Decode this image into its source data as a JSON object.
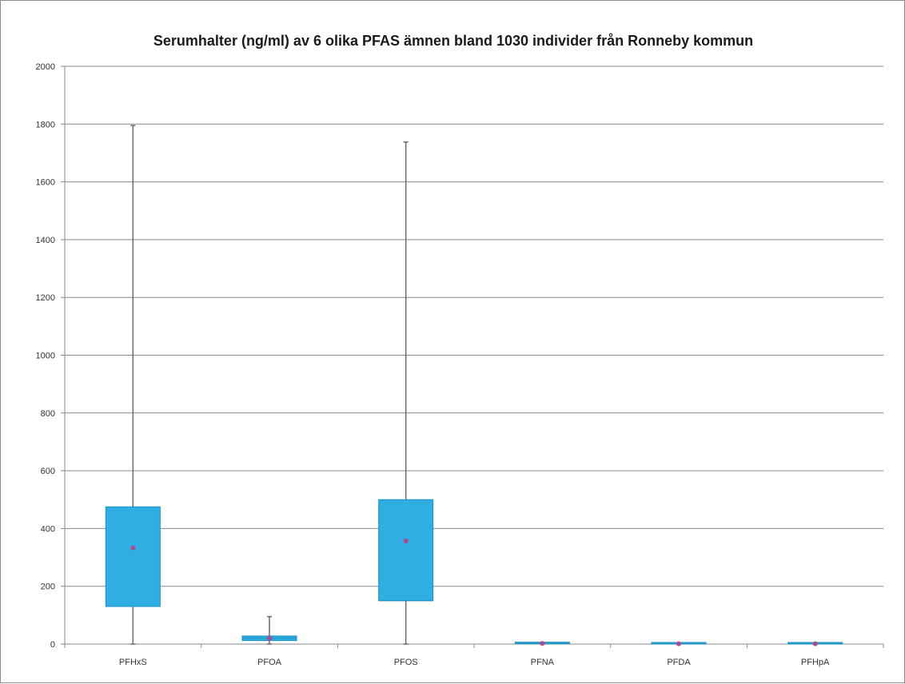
{
  "chart_data": {
    "type": "box",
    "title": "Serumhalter (ng/ml) av 6 olika PFAS ämnen bland 1030 individer från Ronneby kommun",
    "xlabel": "",
    "ylabel": "",
    "ylim": [
      0,
      2000
    ],
    "yticks": [
      0,
      200,
      400,
      600,
      800,
      1000,
      1200,
      1400,
      1600,
      1800,
      2000
    ],
    "grid": true,
    "categories": [
      "PFHxS",
      "PFOA",
      "PFOS",
      "PFNA",
      "PFDA",
      "PFHpA"
    ],
    "boxes": [
      {
        "min": 0,
        "q1": 130,
        "median": 130,
        "q3": 475,
        "max": 1795,
        "mean": 333
      },
      {
        "min": 0,
        "q1": 12,
        "median": 20,
        "q3": 28,
        "max": 95,
        "mean": 20
      },
      {
        "min": 0,
        "q1": 150,
        "median": 150,
        "q3": 500,
        "max": 1738,
        "mean": 357
      },
      {
        "min": 0,
        "q1": 1,
        "median": 2,
        "q3": 4,
        "max": 6,
        "mean": 2
      },
      {
        "min": 0,
        "q1": 0,
        "median": 1,
        "q3": 2,
        "max": 4,
        "mean": 1
      },
      {
        "min": 0,
        "q1": 0,
        "median": 1,
        "q3": 2,
        "max": 3,
        "mean": 1
      }
    ],
    "colors": {
      "box": "#2eaee3",
      "box_edge": "#1f8fc0",
      "whisker": "#6b6b6b",
      "mean_marker": "#b04a8a",
      "grid": "#8a8a8a",
      "axis": "#8a8a8a"
    }
  }
}
